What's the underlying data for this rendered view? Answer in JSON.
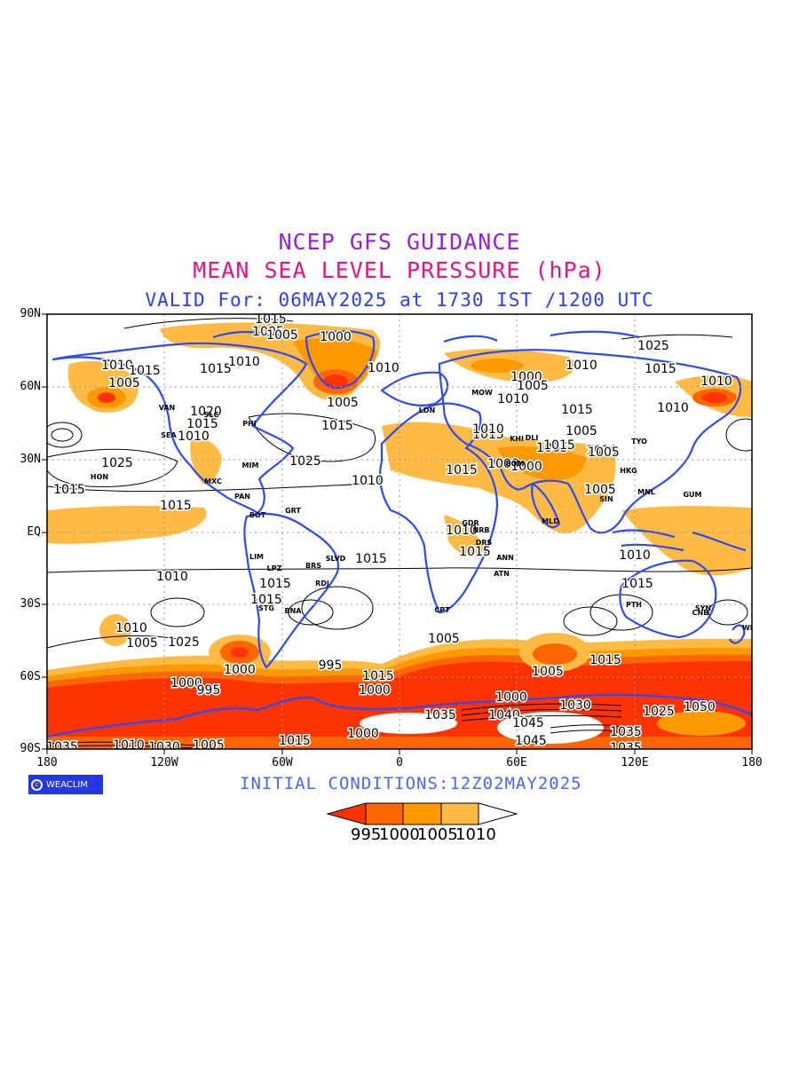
{
  "title_line1": "NCEP GFS GUIDANCE",
  "title_line2": "MEAN SEA LEVEL PRESSURE (hPa)",
  "title_line3": "VALID For: 06MAY2025 at 1730 IST /1200 UTC",
  "initial_conditions": "INITIAL  CONDITIONS:12Z02MAY2025",
  "logo_text": "WEACLIM",
  "lat_labels": [
    "90N",
    "60N",
    "30N",
    "EQ",
    "30S",
    "60S",
    "90S"
  ],
  "lon_labels": [
    "180",
    "120W",
    "60W",
    "0",
    "60E",
    "120E",
    "180"
  ],
  "legend": {
    "boundaries": [
      "995",
      "1000",
      "1005",
      "1010"
    ],
    "colors": [
      "#ff3300",
      "#ff6600",
      "#ff9900",
      "#ffbb44",
      "#ffffff"
    ]
  },
  "colors": {
    "ocean": "#ffffff",
    "coast": "#2e48ff",
    "shade_low": "#ff3300",
    "shade_995": "#ff6600",
    "shade_1000": "#ff9900",
    "shade_1005": "#ffbb44"
  },
  "contour_labels": [
    "1015",
    "1005",
    "1005",
    "1000",
    "1010",
    "1015",
    "1015",
    "1010",
    "1025",
    "1010",
    "1000",
    "1005",
    "1010",
    "1005",
    "1010",
    "1010",
    "1015",
    "1005",
    "1015",
    "1020",
    "1015",
    "1010",
    "1005",
    "1015",
    "1025",
    "1025",
    "1015",
    "1010",
    "1015",
    "1005",
    "1010",
    "1015",
    "1005",
    "1010",
    "1000",
    "1000",
    "1005",
    "1010",
    "1015",
    "1015",
    "1015",
    "1010",
    "1015",
    "1015",
    "1015",
    "1010",
    "1015",
    "1010",
    "1025",
    "1005",
    "1005",
    "1000",
    "1000",
    "995",
    "995",
    "1015",
    "1000",
    "1005",
    "1000",
    "1015",
    "1010",
    "1035",
    "1040",
    "1045",
    "1030",
    "1025",
    "1050",
    "1045",
    "1035",
    "1035",
    "1010",
    "1030",
    "1005",
    "1015",
    "1000",
    "1035"
  ],
  "station_codes": [
    "HON",
    "VAN",
    "SEA",
    "SLC",
    "PHI",
    "MIM",
    "MXC",
    "PAN",
    "BOT",
    "LIM",
    "LPZ",
    "STG",
    "BNA",
    "GRT",
    "BRS",
    "RDJ",
    "SLVD",
    "MOW",
    "CPT",
    "NRB",
    "KHI",
    "BOM",
    "MLD",
    "MNL",
    "TYO",
    "HKG",
    "GUM",
    "PTH",
    "SYN",
    "CNB",
    "WLT",
    "SIN",
    "ANN",
    "DRS",
    "GDR",
    "ATN",
    "DLI",
    "LDN"
  ]
}
